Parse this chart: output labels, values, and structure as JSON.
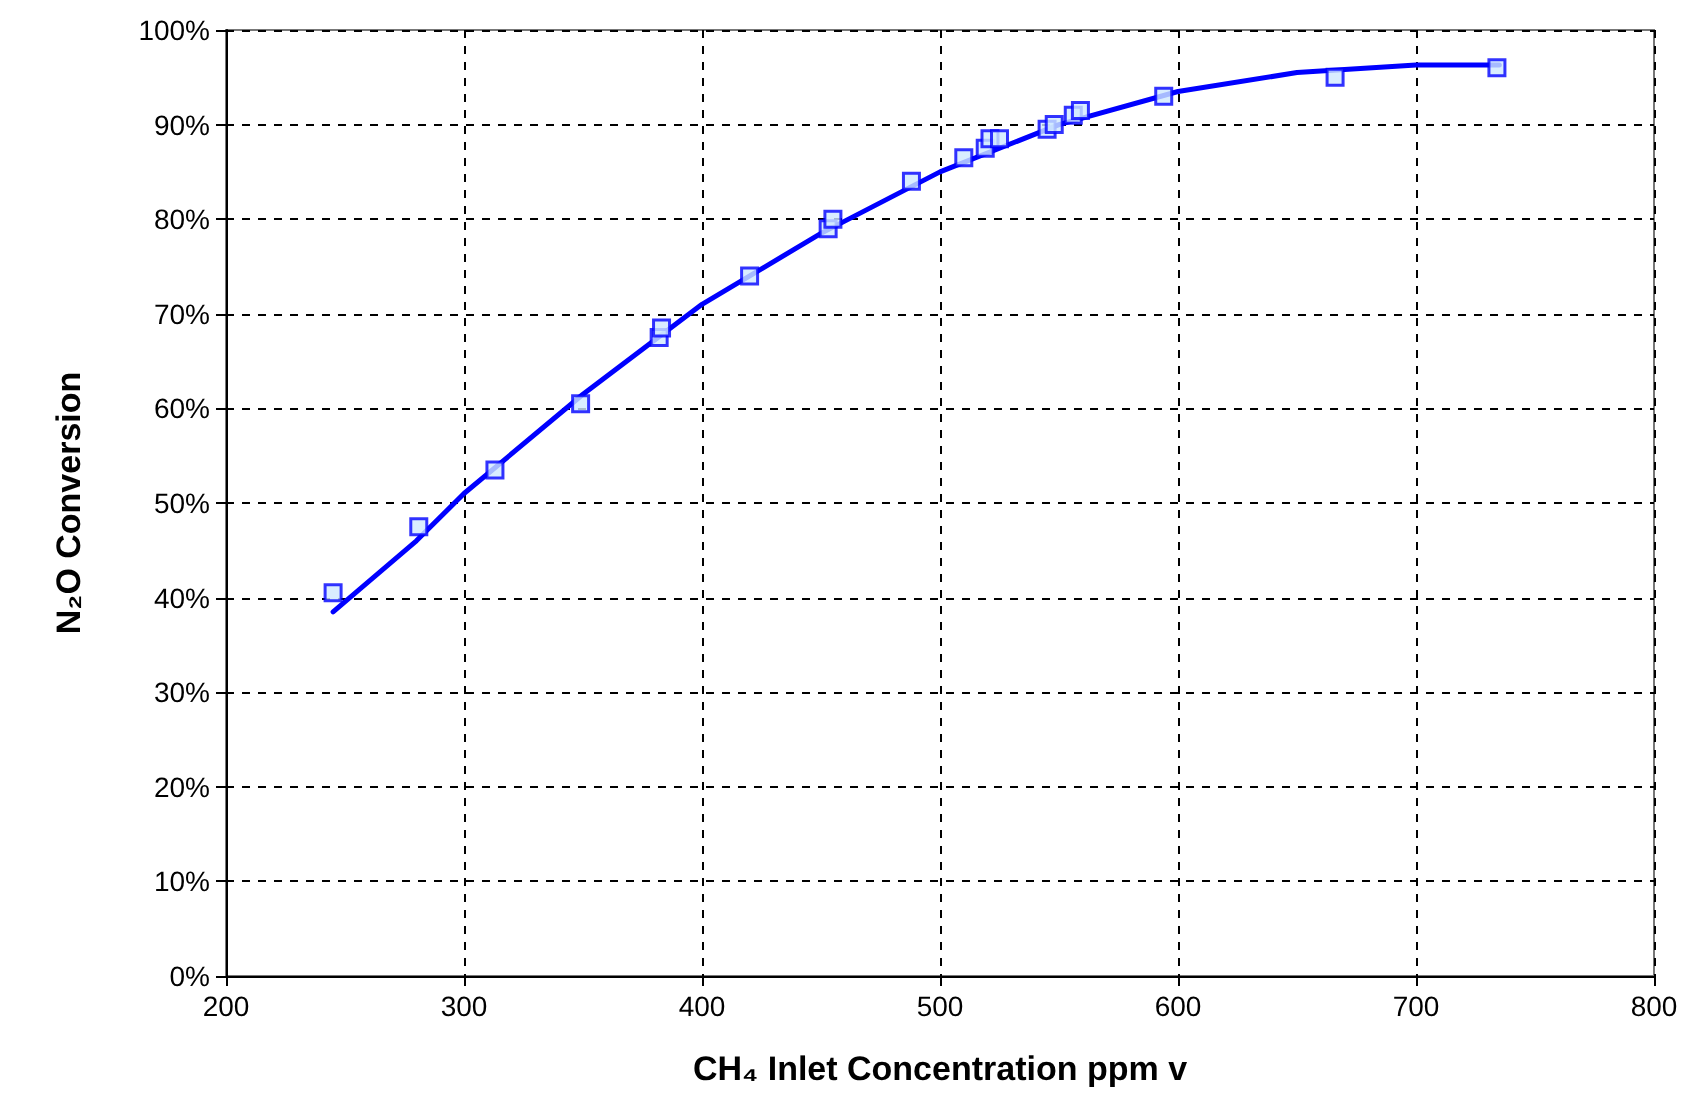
{
  "chart_data": {
    "type": "scatter",
    "xlabel": "CH₄ Inlet Concentration ppm v",
    "ylabel": "N₂O Conversion",
    "xlim": [
      200,
      800
    ],
    "xticks": [
      200,
      300,
      400,
      500,
      600,
      700,
      800
    ],
    "ylim": [
      0,
      100
    ],
    "yticks": [
      {
        "value": 0,
        "label": "0%"
      },
      {
        "value": 10,
        "label": "10%"
      },
      {
        "value": 20,
        "label": "20%"
      },
      {
        "value": 30,
        "label": "30%"
      },
      {
        "value": 40,
        "label": "40%"
      },
      {
        "value": 50,
        "label": "50%"
      },
      {
        "value": 60,
        "label": "60%"
      },
      {
        "value": 70,
        "label": "70%"
      },
      {
        "value": 80,
        "label": "80%"
      },
      {
        "value": 90,
        "label": "90%"
      },
      {
        "value": 100,
        "label": "100%"
      }
    ],
    "grid": true,
    "marker": "square",
    "series": [
      {
        "type": "scatter",
        "color": "#0000ff",
        "x": [
          245,
          281,
          313,
          349,
          382,
          383,
          420,
          453,
          455,
          488,
          510,
          519,
          521,
          525,
          545,
          548,
          556,
          559,
          594,
          666,
          734
        ],
        "values": [
          40.5,
          47.5,
          53.5,
          60.5,
          67.5,
          68.5,
          74,
          79,
          80,
          84,
          86.5,
          87.5,
          88.5,
          88.5,
          89.5,
          90,
          91,
          91.5,
          93,
          95,
          96
        ]
      },
      {
        "type": "line",
        "color": "#0000ff",
        "marker": "none",
        "line_style": "solid",
        "x": [
          245,
          280,
          300,
          350,
          400,
          450,
          500,
          550,
          600,
          650,
          700,
          735
        ],
        "values": [
          38.5,
          46,
          51,
          61.5,
          71,
          78.5,
          85,
          90,
          93.5,
          95.5,
          96.3,
          96.3
        ]
      }
    ]
  }
}
